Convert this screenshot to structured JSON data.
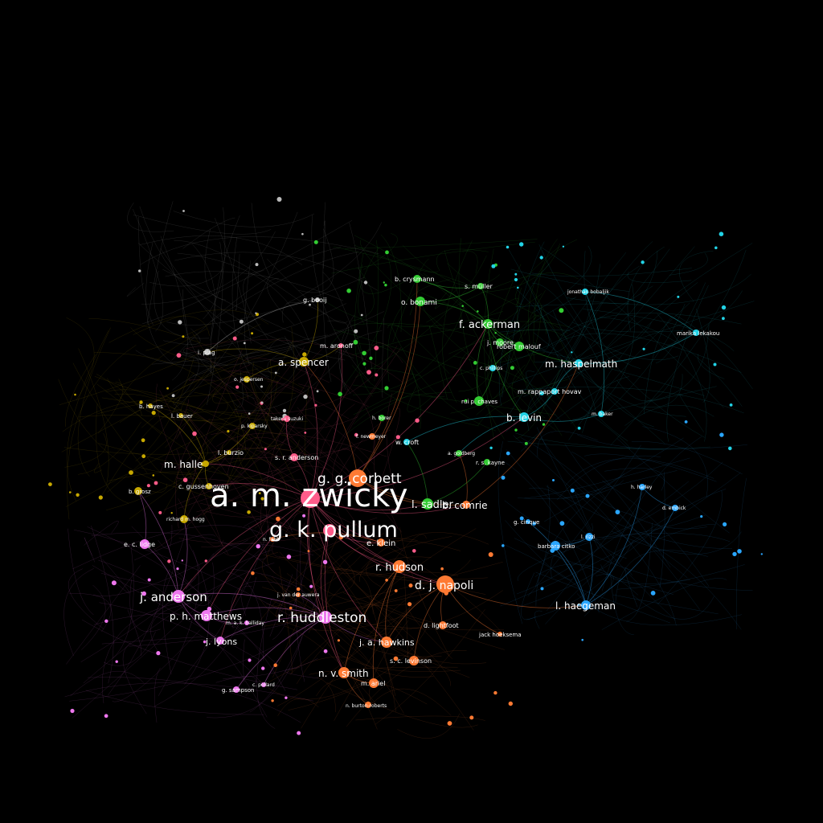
{
  "colors": {
    "background": "#000000",
    "label": "#ffffff",
    "communities": {
      "orange": "#ff7a33",
      "pink": "#ff5c8a",
      "violet": "#ee77ee",
      "green": "#33cc33",
      "cyan": "#22d3e6",
      "blue": "#2aa6ff",
      "olive": "#c7a800",
      "gray": "#bbbbbb"
    }
  },
  "nodes": [
    {
      "id": "zwicky",
      "label": "a. m. zwicky",
      "group": "pink"
    },
    {
      "id": "pullum",
      "label": "g. k. pullum",
      "group": "pink"
    },
    {
      "id": "corbett",
      "label": "g. g. corbett",
      "group": "orange"
    },
    {
      "id": "huddleston",
      "label": "r. huddleston",
      "group": "violet"
    },
    {
      "id": "anderson_j",
      "label": "j. anderson",
      "group": "violet"
    },
    {
      "id": "napoli",
      "label": "d. j. napoli",
      "group": "orange"
    },
    {
      "id": "hudson",
      "label": "r. hudson",
      "group": "orange"
    },
    {
      "id": "sadler",
      "label": "l. sadler",
      "group": "green"
    },
    {
      "id": "comrie",
      "label": "b. comrie",
      "group": "orange"
    },
    {
      "id": "ackerman",
      "label": "f. ackerman",
      "group": "green"
    },
    {
      "id": "spencer",
      "label": "a. spencer",
      "group": "olive"
    },
    {
      "id": "halle",
      "label": "m. halle",
      "group": "olive"
    },
    {
      "id": "matthews",
      "label": "p. h. matthews",
      "group": "violet"
    },
    {
      "id": "smith",
      "label": "n. v. smith",
      "group": "orange"
    },
    {
      "id": "haegeman",
      "label": "l. haegeman",
      "group": "blue"
    },
    {
      "id": "haspelmath",
      "label": "m. haspelmath",
      "group": "cyan"
    },
    {
      "id": "levin",
      "label": "b. levin",
      "group": "cyan"
    },
    {
      "id": "lyons",
      "label": "j. lyons",
      "group": "violet"
    },
    {
      "id": "hawkins",
      "label": "j. a. hawkins",
      "group": "orange"
    },
    {
      "id": "klein",
      "label": "e. klein",
      "group": "orange"
    },
    {
      "id": "bonami",
      "label": "o. bonami",
      "group": "green"
    },
    {
      "id": "crysmann",
      "label": "b. crysmann",
      "group": "green"
    },
    {
      "id": "muller",
      "label": "s. müller",
      "group": "green"
    },
    {
      "id": "malouf",
      "label": "robert malouf",
      "group": "green"
    },
    {
      "id": "moore",
      "label": "j. moore",
      "group": "green"
    },
    {
      "id": "rappaport",
      "label": "m. rappaport hovav",
      "group": "cyan"
    },
    {
      "id": "croft",
      "label": "w. croft",
      "group": "cyan"
    },
    {
      "id": "booij",
      "label": "g. booij",
      "group": "gray"
    },
    {
      "id": "aronoff",
      "label": "m. aronoff",
      "group": "pink"
    },
    {
      "id": "gussenhoven",
      "label": "c. gussenhoven",
      "group": "olive"
    },
    {
      "id": "anderson_sr",
      "label": "s. r. anderson",
      "group": "pink"
    },
    {
      "id": "burzio",
      "label": "l. burzio",
      "group": "olive"
    },
    {
      "id": "ellidge",
      "label": "e. c. lidge",
      "group": "violet"
    },
    {
      "id": "lightfoot",
      "label": "d. lightfoot",
      "group": "orange"
    },
    {
      "id": "levinson",
      "label": "s. c. levinson",
      "group": "orange"
    },
    {
      "id": "ariel",
      "label": "m. ariel",
      "group": "orange"
    },
    {
      "id": "sampson",
      "label": "g. sampson",
      "group": "violet"
    },
    {
      "id": "cinque",
      "label": "g. cinque",
      "group": "blue"
    },
    {
      "id": "hoeksema",
      "label": "jack hoeksema",
      "group": "orange"
    },
    {
      "id": "burtonroberts",
      "label": "n. burton-roberts",
      "group": "orange"
    },
    {
      "id": "chaves",
      "label": "rui p. chaves",
      "group": "green"
    },
    {
      "id": "hayes",
      "label": "b. hayes",
      "group": "olive"
    },
    {
      "id": "bauer",
      "label": "l. bauer",
      "group": "olive"
    },
    {
      "id": "plag",
      "label": "i. plag",
      "group": "gray"
    },
    {
      "id": "phillips",
      "label": "c. phillips",
      "group": "cyan"
    },
    {
      "id": "kiparsky",
      "label": "p. kiparsky",
      "group": "olive"
    },
    {
      "id": "hogg",
      "label": "richard m. hogg",
      "group": "olive"
    },
    {
      "id": "lakakou",
      "label": "marika lekakou",
      "group": "cyan"
    },
    {
      "id": "kayne",
      "label": "r. s. kayne",
      "group": "green"
    },
    {
      "id": "halliday",
      "label": "m. a. k. halliday",
      "group": "violet"
    },
    {
      "id": "vandeauwera",
      "label": "j. van der auwera",
      "group": "orange"
    },
    {
      "id": "grosz",
      "label": "b. grosz",
      "group": "olive"
    },
    {
      "id": "pollard",
      "label": "c. pollard",
      "group": "violet"
    },
    {
      "id": "tuduo",
      "label": "barbara citko",
      "group": "blue"
    },
    {
      "id": "jesperson",
      "label": "o. jespersen",
      "group": "olive"
    },
    {
      "id": "suzuki",
      "label": "takeru suzuki",
      "group": "pink"
    },
    {
      "id": "ruwet",
      "label": "f. newmeyer",
      "group": "orange"
    },
    {
      "id": "rizzi",
      "label": "l. rizzi",
      "group": "blue"
    },
    {
      "id": "borer",
      "label": "h. borer",
      "group": "green"
    },
    {
      "id": "goldberg",
      "label": "a. goldberg",
      "group": "green"
    },
    {
      "id": "harley",
      "label": "h. harley",
      "group": "blue"
    },
    {
      "id": "embick",
      "label": "d. embick",
      "group": "blue"
    },
    {
      "id": "baker",
      "label": "m. baker",
      "group": "cyan"
    },
    {
      "id": "fabb",
      "label": "n. fabb",
      "group": "orange"
    },
    {
      "id": "zwicky2",
      "label": "jonathan bobaljik",
      "group": "cyan"
    }
  ]
}
